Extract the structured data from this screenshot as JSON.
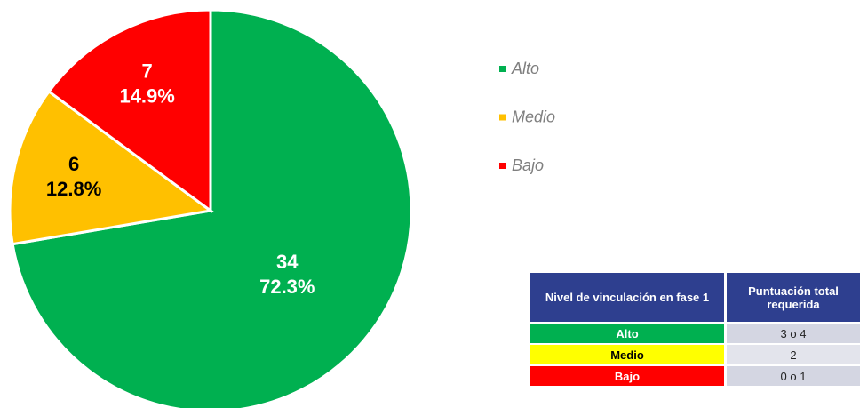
{
  "chart_data": {
    "type": "pie",
    "categories": [
      "Alto",
      "Medio",
      "Bajo"
    ],
    "values": [
      34,
      6,
      7
    ],
    "percentages": [
      72.3,
      12.8,
      14.9
    ],
    "percentage_labels": [
      "72.3%",
      "12.8%",
      "14.9%"
    ],
    "colors": [
      "#00b050",
      "#ffc000",
      "#ff0000"
    ],
    "legend": "right"
  },
  "table": {
    "header": [
      "Nivel de vinculación en fase 1",
      "Puntuación total requerida"
    ],
    "rows": [
      [
        "Alto",
        "3 o 4"
      ],
      [
        "Medio",
        "2"
      ],
      [
        "Bajo",
        "0 o 1"
      ]
    ]
  }
}
